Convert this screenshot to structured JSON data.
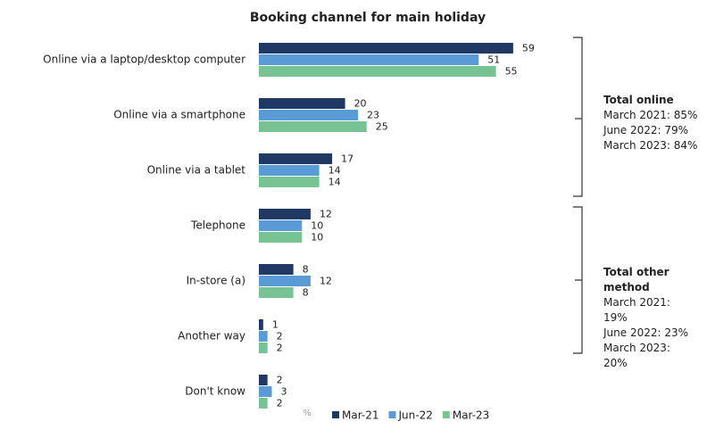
{
  "chart_data": {
    "type": "bar",
    "orientation": "horizontal",
    "title": "Booking channel for main holiday",
    "xlabel": "%",
    "categories": [
      "Online via a laptop/desktop computer",
      "Online via a smartphone",
      "Online via a tablet",
      "Telephone",
      "In-store (a)",
      "Another way",
      "Don't know"
    ],
    "series": [
      {
        "name": "Mar-21",
        "color": "#1f3864",
        "values": [
          59,
          20,
          17,
          12,
          8,
          1,
          2
        ]
      },
      {
        "name": "Jun-22",
        "color": "#5b9bd5",
        "values": [
          51,
          23,
          14,
          10,
          12,
          2,
          3
        ]
      },
      {
        "name": "Mar-23",
        "color": "#77c393",
        "values": [
          55,
          25,
          14,
          10,
          8,
          2,
          2
        ]
      }
    ],
    "xlim": [
      0,
      70
    ],
    "legend": "bottom",
    "annotations": [
      {
        "title": "Total online",
        "lines": [
          "March 2021: 85%",
          "June 2022: 79%",
          "March 2023: 84%"
        ]
      },
      {
        "title": "Total other method",
        "lines": [
          "March 2021: 19%",
          "June 2022: 23%",
          "March 2023: 20%"
        ]
      }
    ]
  }
}
